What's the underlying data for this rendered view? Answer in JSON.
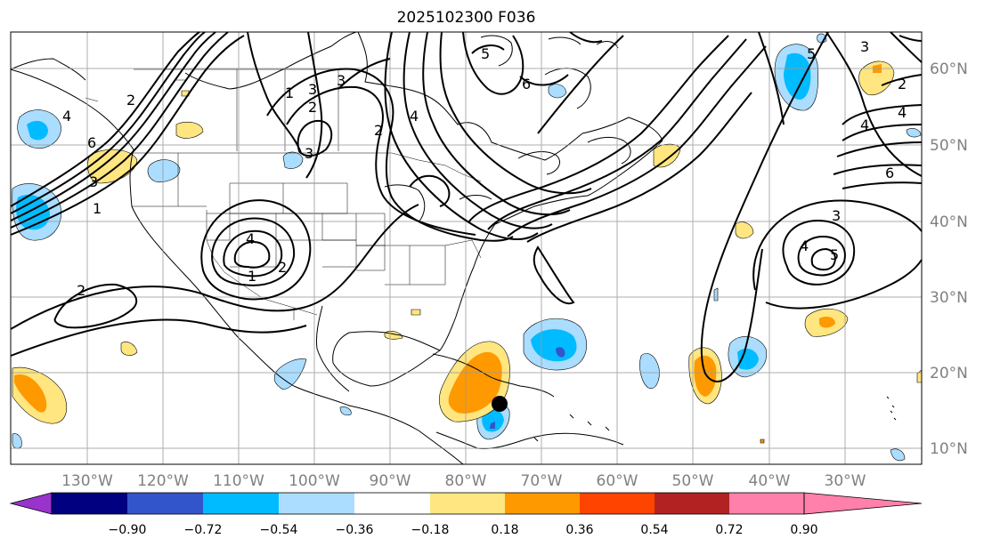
{
  "title": "2025102300 F036",
  "longitude_labels": [
    "130°W",
    "120°W",
    "110°W",
    "100°W",
    "90°W",
    "80°W",
    "70°W",
    "60°W",
    "50°W",
    "40°W",
    "30°W"
  ],
  "latitude_labels": [
    "60°N",
    "50°N",
    "40°N",
    "30°N",
    "20°N",
    "10°N"
  ],
  "colorbar": {
    "tick_labels": [
      "−0.90",
      "−0.72",
      "−0.54",
      "−0.36",
      "−0.18",
      "0.18",
      "0.36",
      "0.54",
      "0.72",
      "0.90"
    ],
    "colors": [
      "#9933cc",
      "#000080",
      "#3355cc",
      "#00bbff",
      "#aaddff",
      "#ffffff",
      "#ffe680",
      "#ff9900",
      "#ff4400",
      "#b22222",
      "#ff80aa"
    ]
  },
  "contour_labels": [
    "2",
    "4",
    "1",
    "2",
    "3",
    "6",
    "5",
    "4",
    "3",
    "2",
    "1",
    "6",
    "4",
    "3",
    "1",
    "2",
    "5",
    "4",
    "3",
    "6",
    "3",
    "4",
    "5",
    "2",
    "4",
    "3",
    "2"
  ],
  "marker": "storm-center"
}
